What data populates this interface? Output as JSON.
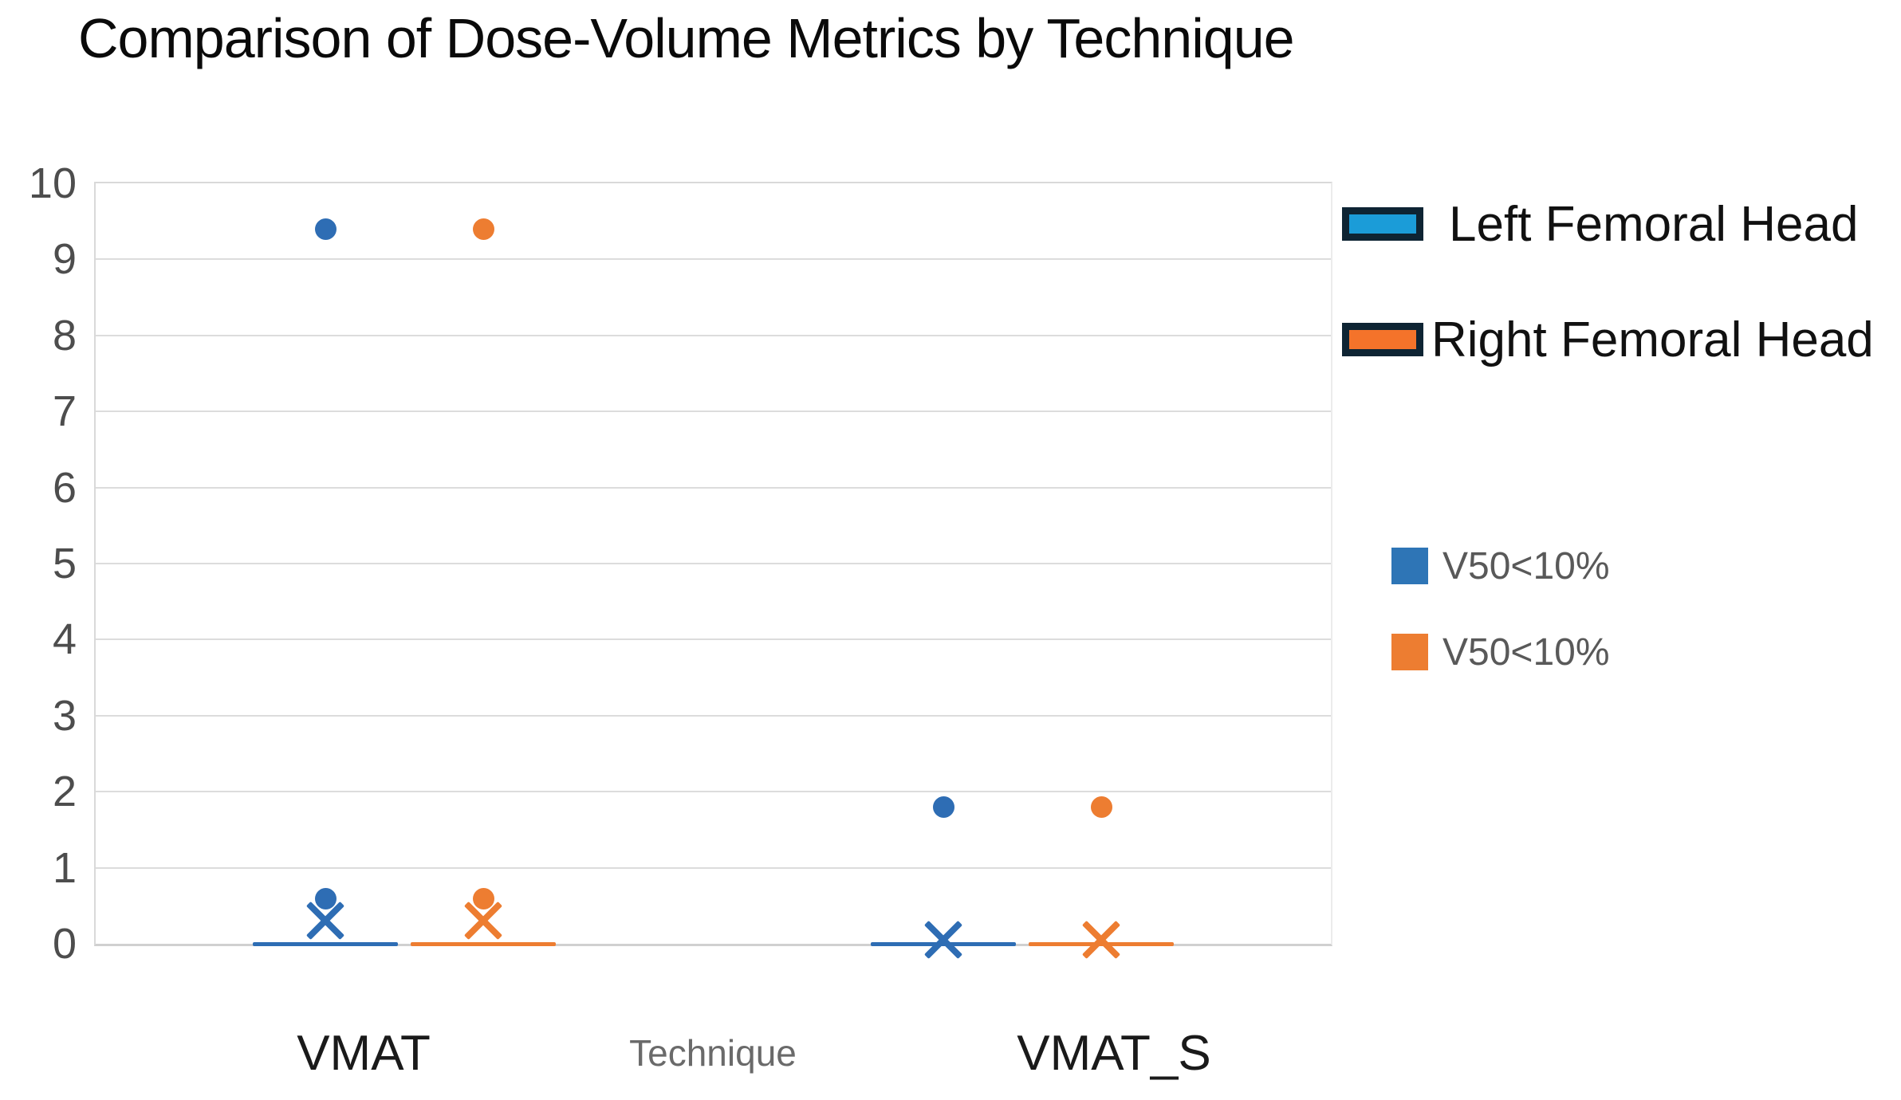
{
  "chart_data": {
    "type": "boxplot",
    "title": "Comparison of Dose-Volume Metrics by Technique",
    "xlabel": "Technique",
    "categories": [
      "VMAT",
      "VMAT_S"
    ],
    "ylim": [
      0,
      10
    ],
    "ytick_step": 1,
    "grid": "horizontal",
    "legend_position": "right",
    "series": [
      {
        "name": "Left Femoral Head",
        "threshold_label": "V50<10%",
        "color": "#2E6DB4",
        "square_color": "#2E75B6",
        "swatch_fill": "#1B9CD8",
        "swatch_border": "#0E2433",
        "outlier_points": [
          [
            9.4,
            0.6
          ],
          [
            1.8
          ]
        ],
        "mean_x": [
          0.3,
          0.05
        ],
        "median": [
          0,
          0
        ]
      },
      {
        "name": "Right Femoral Head",
        "threshold_label": "V50<10%",
        "color": "#ED7D31",
        "square_color": "#ED7D31",
        "swatch_fill": "#F4732A",
        "swatch_border": "#0E2433",
        "outlier_points": [
          [
            9.4,
            0.6
          ],
          [
            1.8
          ]
        ],
        "mean_x": [
          0.3,
          0.05
        ],
        "median": [
          0,
          0
        ]
      }
    ]
  }
}
